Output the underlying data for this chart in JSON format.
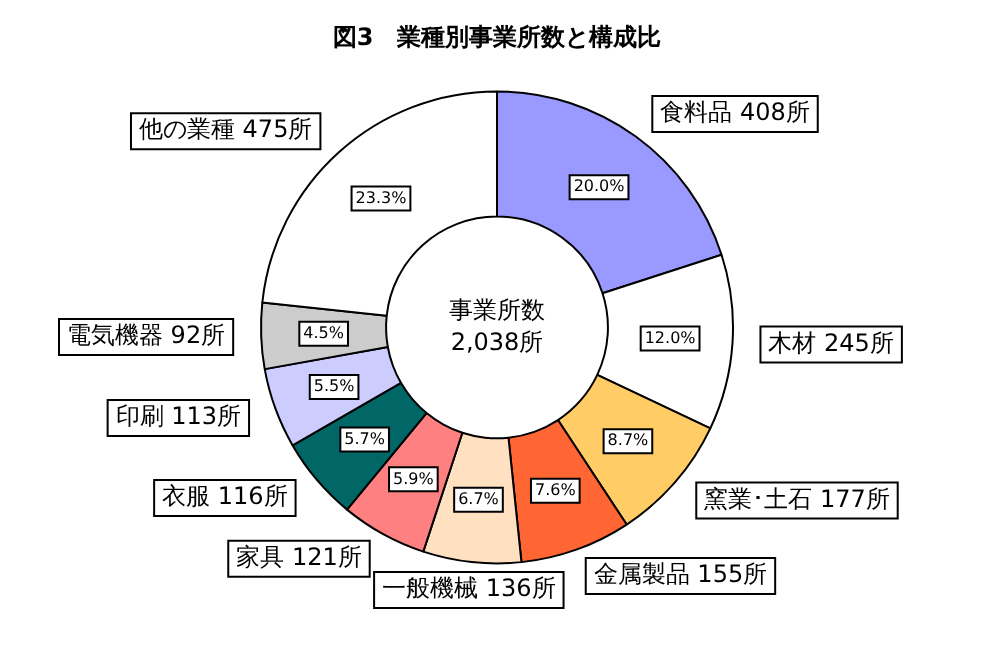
{
  "chart_data": {
    "type": "donut",
    "title": "図3　業種別事業所数と構成比",
    "categories": [
      "食料品 408所",
      "木材 245所",
      "窯業･土石 177所",
      "金属製品 155所",
      "一般機械 136所",
      "家具 121所",
      "衣服 116所",
      "印刷 113所",
      "電気機器 92所",
      "他の業種 475所"
    ],
    "values": [
      20.0,
      12.0,
      8.7,
      7.6,
      6.7,
      5.9,
      5.7,
      5.5,
      4.5,
      23.3
    ],
    "value_labels": [
      "20.0%",
      "12.0%",
      "8.7%",
      "7.6%",
      "6.7%",
      "5.9%",
      "5.7%",
      "5.5%",
      "4.5%",
      "23.3%"
    ],
    "colors": [
      "#9999ff",
      "#ffffff",
      "#ffcc66",
      "#ff6633",
      "#ffe0c0",
      "#ff8080",
      "#006666",
      "#ccccff",
      "#cccccc",
      "#ffffff"
    ],
    "annotations": [
      "事業所数",
      "2,038所"
    ],
    "legend": false
  }
}
